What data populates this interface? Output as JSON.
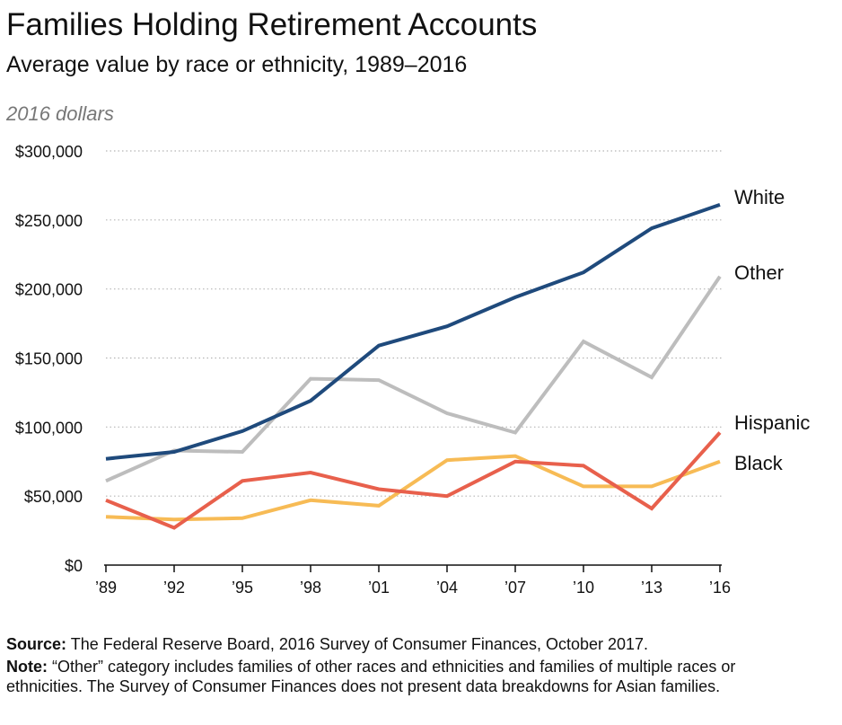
{
  "chart_data": {
    "type": "line",
    "title": "Families Holding Retirement Accounts",
    "subtitle": "Average value by race or ethnicity, 1989–2016",
    "unit_label": "2016 dollars",
    "x": [
      "’89",
      "’92",
      "’95",
      "’98",
      "’01",
      "’04",
      "’07",
      "’10",
      "’13",
      "’16"
    ],
    "y_ticks": [
      "$0",
      "$50,000",
      "$100,000",
      "$150,000",
      "$200,000",
      "$250,000",
      "$300,000"
    ],
    "ylim": [
      0,
      300000
    ],
    "grid": true,
    "legend": "inline-right",
    "series": [
      {
        "name": "White",
        "color": "#1f4a7c",
        "values": [
          77000,
          82000,
          97000,
          119000,
          159000,
          173000,
          194000,
          212000,
          244000,
          261000
        ]
      },
      {
        "name": "Other",
        "color": "#bdbdbd",
        "values": [
          61000,
          83000,
          82000,
          135000,
          134000,
          110000,
          96000,
          162000,
          136000,
          209000
        ]
      },
      {
        "name": "Hispanic",
        "color": "#e8604c",
        "values": [
          47000,
          27000,
          61000,
          67000,
          55000,
          50000,
          75000,
          72000,
          41000,
          96000
        ]
      },
      {
        "name": "Black",
        "color": "#f7bb55",
        "values": [
          35000,
          33000,
          34000,
          47000,
          43000,
          76000,
          79000,
          57000,
          57000,
          75000
        ]
      }
    ]
  },
  "footer": {
    "source_label": "Source:",
    "source_text": " The Federal Reserve Board, 2016 Survey of Consumer Finances, October 2017.",
    "note_label": "Note:",
    "note_text": " “Other” category includes families of other races and ethnicities and families of multiple races or ethnicities. The Survey of Consumer Finances does not present data breakdowns for Asian families."
  }
}
